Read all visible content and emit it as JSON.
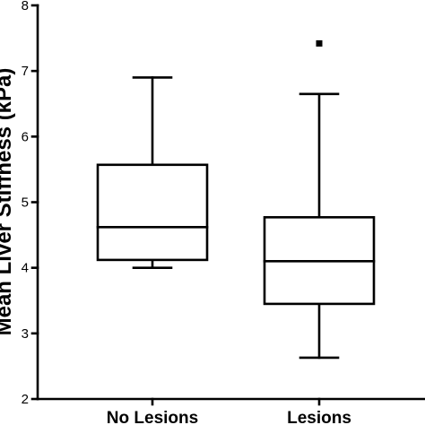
{
  "chart_data": {
    "type": "box",
    "title": "",
    "xlabel": "",
    "ylabel": "Mean Liver Stiffness (kPa)",
    "ylim": [
      2,
      8
    ],
    "yticks": [
      2,
      3,
      4,
      5,
      6,
      7,
      8
    ],
    "ytick_labels": [
      "2",
      "3",
      "4",
      "5",
      "6",
      "7",
      "8"
    ],
    "grid": false,
    "legend": "none",
    "categories": [
      "No Lesions",
      "Lesions"
    ],
    "boxes": [
      {
        "category": "No Lesions",
        "whisker_low": 4.0,
        "q1": 4.12,
        "median": 4.62,
        "q3": 5.57,
        "whisker_high": 6.9,
        "outliers": []
      },
      {
        "category": "Lesions",
        "whisker_low": 2.63,
        "q1": 3.45,
        "median": 4.1,
        "q3": 4.77,
        "whisker_high": 6.65,
        "outliers": [
          7.42
        ]
      }
    ]
  }
}
